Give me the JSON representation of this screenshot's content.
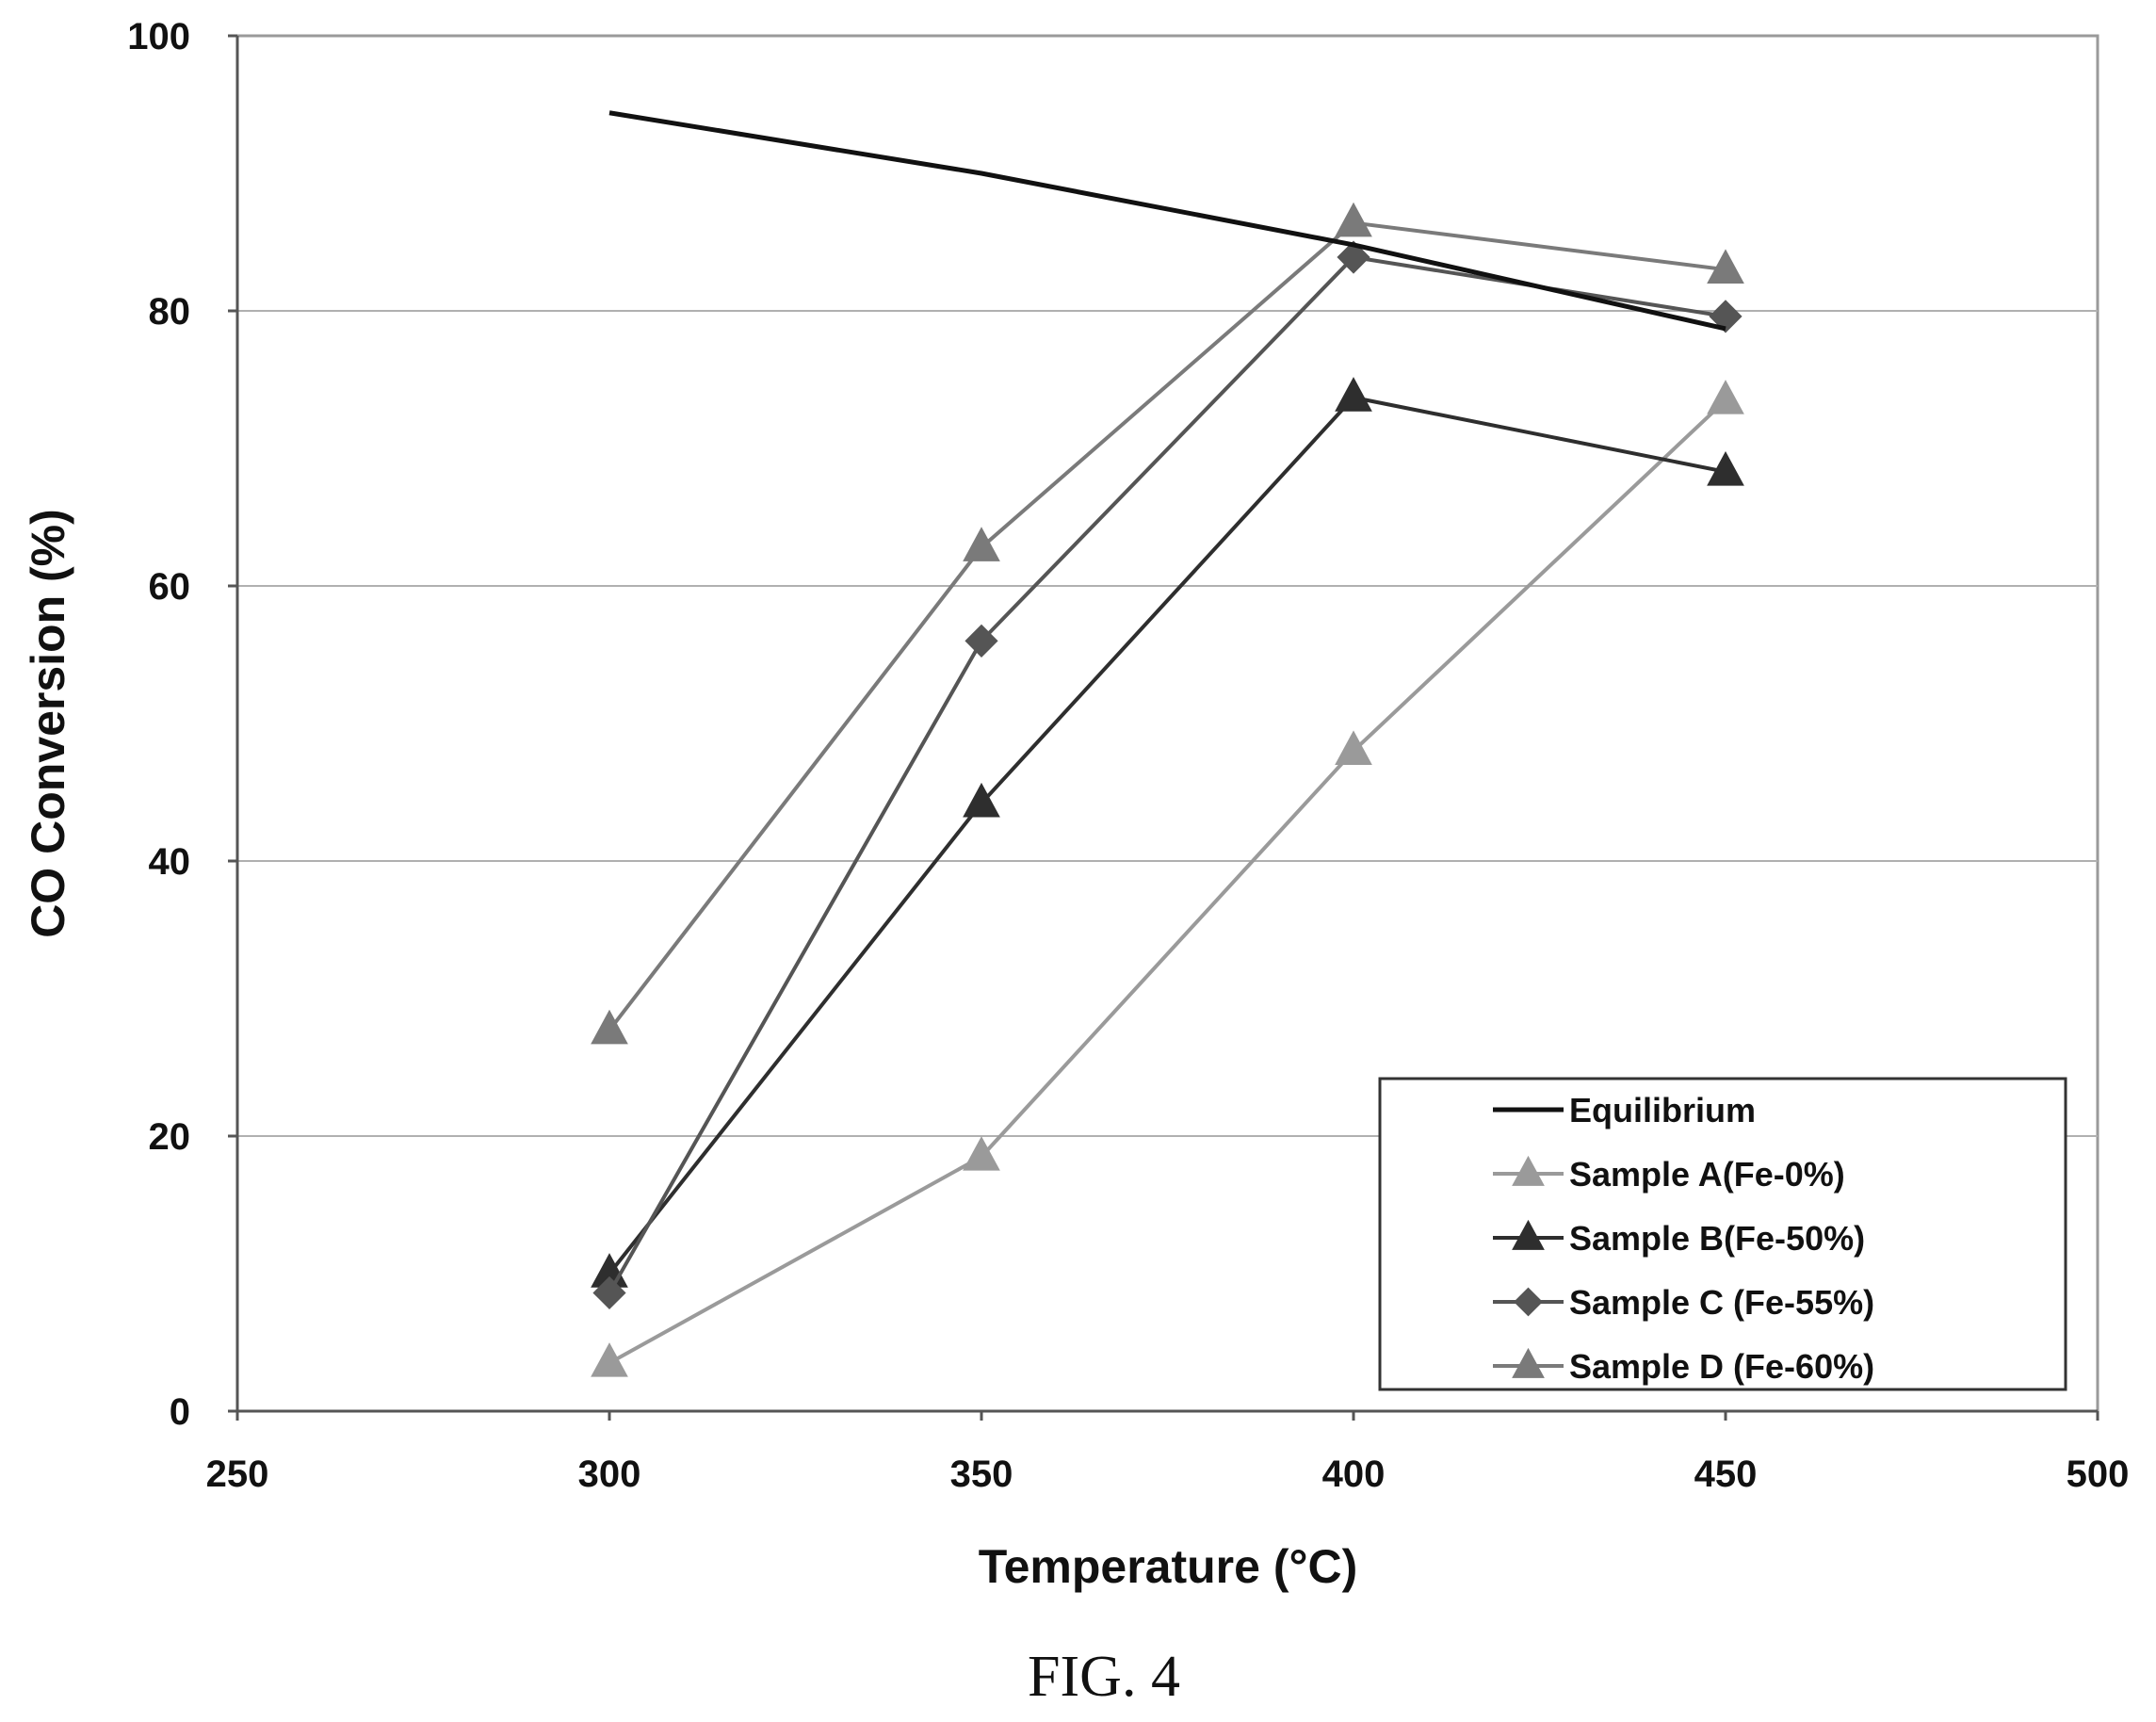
{
  "chart_data": {
    "type": "line",
    "xlabel": "Temperature (°C)",
    "ylabel": "CO Conversion (%)",
    "xlim": [
      250,
      500
    ],
    "ylim": [
      0,
      100
    ],
    "xticks": [
      250,
      300,
      350,
      400,
      450,
      500
    ],
    "yticks": [
      0,
      20,
      40,
      60,
      80,
      100
    ],
    "grid": "horizontal",
    "legend_position": "bottom-right",
    "series": [
      {
        "name": "Equilibrium",
        "marker": "none",
        "color": "#111111",
        "x": [
          300,
          350,
          400,
          450
        ],
        "y": [
          94.4,
          90.0,
          84.8,
          78.7
        ]
      },
      {
        "name": "Sample A(Fe-0%)",
        "marker": "triangle",
        "color": "#9a9a9a",
        "x": [
          300,
          350,
          400,
          450
        ],
        "y": [
          3.5,
          18.5,
          48.0,
          73.5
        ]
      },
      {
        "name": "Sample B(Fe-50%)",
        "marker": "triangle",
        "color": "#2e2e2e",
        "x": [
          300,
          350,
          400,
          450
        ],
        "y": [
          10.0,
          44.2,
          73.7,
          68.3
        ]
      },
      {
        "name": "Sample C (Fe-55%)",
        "marker": "diamond",
        "color": "#555555",
        "x": [
          300,
          350,
          400,
          450
        ],
        "y": [
          8.6,
          56.0,
          83.9,
          79.6
        ]
      },
      {
        "name": "Sample D (Fe-60%)",
        "marker": "triangle",
        "color": "#7a7a7a",
        "x": [
          300,
          350,
          400,
          450
        ],
        "y": [
          27.7,
          62.8,
          86.4,
          83.0
        ]
      }
    ]
  },
  "caption": "FIG. 4"
}
